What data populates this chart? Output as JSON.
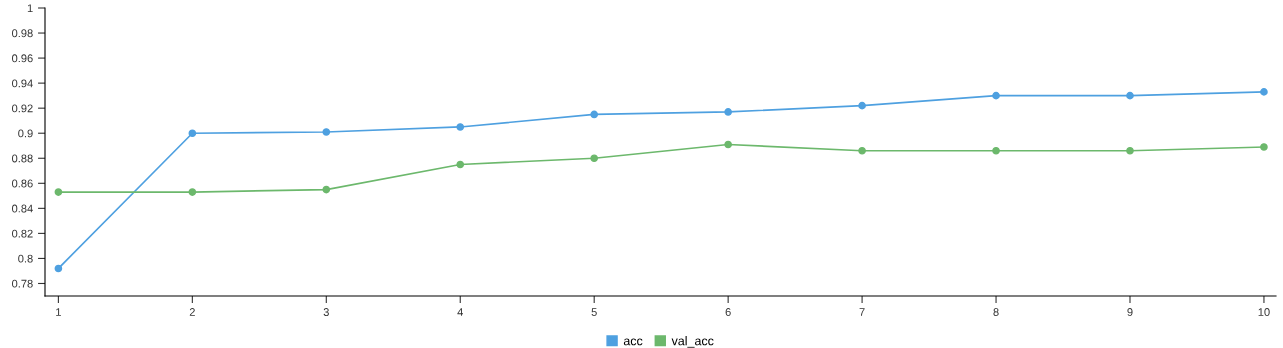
{
  "chart_data": {
    "type": "line",
    "x": [
      1,
      2,
      3,
      4,
      5,
      6,
      7,
      8,
      9,
      10
    ],
    "series": [
      {
        "name": "acc",
        "color": "#4ea0e0",
        "values": [
          0.792,
          0.9,
          0.901,
          0.905,
          0.915,
          0.917,
          0.922,
          0.93,
          0.93,
          0.933
        ]
      },
      {
        "name": "val_acc",
        "color": "#6cb86c",
        "values": [
          0.853,
          0.853,
          0.855,
          0.875,
          0.88,
          0.891,
          0.886,
          0.886,
          0.886,
          0.889
        ]
      }
    ],
    "xlim": [
      0.9,
      10.09
    ],
    "xticks": [
      1,
      2,
      3,
      4,
      5,
      6,
      7,
      8,
      9,
      10
    ],
    "ylim": [
      0.77,
      1
    ],
    "yticks": [
      0.78,
      0.8,
      0.82,
      0.84,
      0.86,
      0.88,
      0.9,
      0.92,
      0.94,
      0.96,
      0.98,
      1
    ],
    "grid": false,
    "legend": "bottom",
    "marker": "circle",
    "line_style": "solid"
  }
}
